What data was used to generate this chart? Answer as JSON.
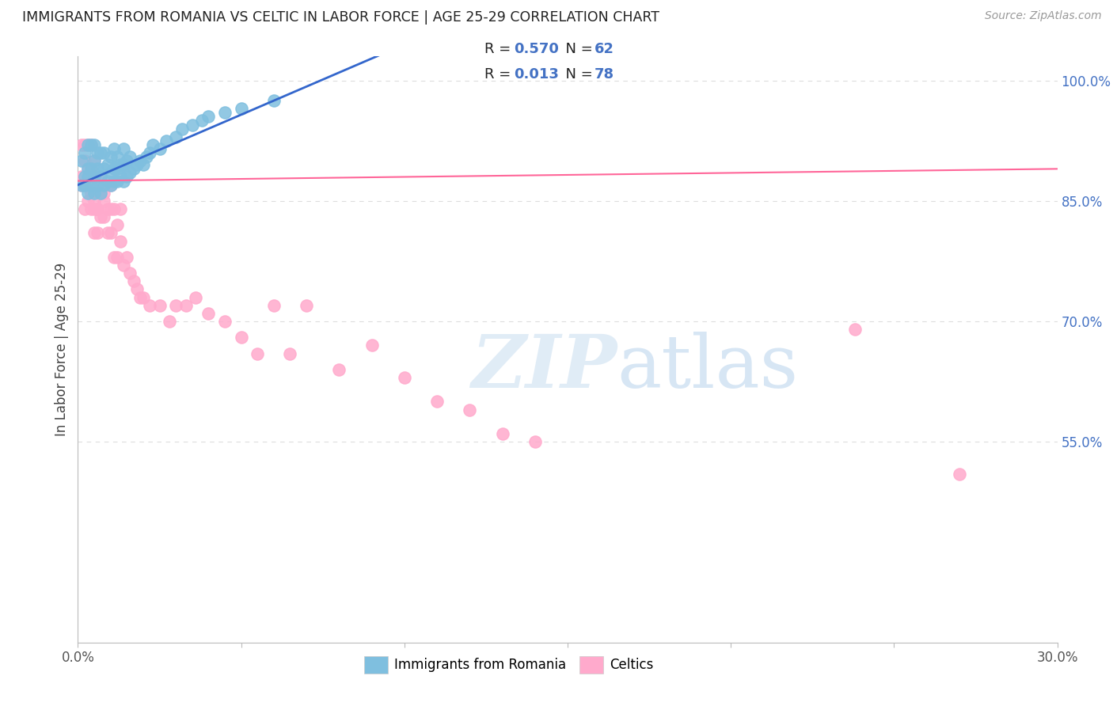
{
  "title": "IMMIGRANTS FROM ROMANIA VS CELTIC IN LABOR FORCE | AGE 25-29 CORRELATION CHART",
  "source": "Source: ZipAtlas.com",
  "ylabel": "In Labor Force | Age 25-29",
  "xlim": [
    0.0,
    0.3
  ],
  "ylim": [
    0.3,
    1.03
  ],
  "xticks": [
    0.0,
    0.05,
    0.1,
    0.15,
    0.2,
    0.25,
    0.3
  ],
  "xticklabels": [
    "0.0%",
    "",
    "",
    "",
    "",
    "",
    "30.0%"
  ],
  "yticks_right": [
    1.0,
    0.85,
    0.7,
    0.55
  ],
  "ytick_labels_right": [
    "100.0%",
    "85.0%",
    "70.0%",
    "55.0%"
  ],
  "romania_color": "#7fbfdf",
  "celtic_color": "#ffaacc",
  "romania_line_color": "#3366cc",
  "celtic_line_color": "#ff6699",
  "legend_label_romania": "Immigrants from Romania",
  "legend_label_celtic": "Celtics",
  "background_color": "#ffffff",
  "grid_color": "#dddddd",
  "title_color": "#222222",
  "right_tick_color": "#4472c4",
  "romania_x": [
    0.001,
    0.001,
    0.002,
    0.002,
    0.002,
    0.003,
    0.003,
    0.003,
    0.003,
    0.004,
    0.004,
    0.004,
    0.005,
    0.005,
    0.005,
    0.005,
    0.006,
    0.006,
    0.006,
    0.007,
    0.007,
    0.007,
    0.008,
    0.008,
    0.008,
    0.009,
    0.009,
    0.01,
    0.01,
    0.01,
    0.011,
    0.011,
    0.011,
    0.012,
    0.012,
    0.012,
    0.013,
    0.013,
    0.014,
    0.014,
    0.014,
    0.015,
    0.015,
    0.016,
    0.016,
    0.017,
    0.018,
    0.019,
    0.02,
    0.021,
    0.022,
    0.023,
    0.025,
    0.027,
    0.03,
    0.032,
    0.035,
    0.038,
    0.04,
    0.045,
    0.05,
    0.06
  ],
  "romania_y": [
    0.87,
    0.9,
    0.88,
    0.91,
    0.87,
    0.86,
    0.89,
    0.92,
    0.88,
    0.87,
    0.89,
    0.92,
    0.86,
    0.88,
    0.9,
    0.92,
    0.87,
    0.89,
    0.91,
    0.86,
    0.88,
    0.91,
    0.87,
    0.89,
    0.91,
    0.875,
    0.895,
    0.87,
    0.885,
    0.905,
    0.875,
    0.89,
    0.915,
    0.875,
    0.89,
    0.905,
    0.88,
    0.895,
    0.875,
    0.895,
    0.915,
    0.88,
    0.9,
    0.885,
    0.905,
    0.89,
    0.895,
    0.9,
    0.895,
    0.905,
    0.91,
    0.92,
    0.915,
    0.925,
    0.93,
    0.94,
    0.945,
    0.95,
    0.955,
    0.96,
    0.965,
    0.975
  ],
  "celtic_x": [
    0.001,
    0.001,
    0.001,
    0.002,
    0.002,
    0.002,
    0.002,
    0.003,
    0.003,
    0.003,
    0.003,
    0.003,
    0.004,
    0.004,
    0.004,
    0.004,
    0.004,
    0.004,
    0.005,
    0.005,
    0.005,
    0.005,
    0.005,
    0.005,
    0.006,
    0.006,
    0.006,
    0.006,
    0.006,
    0.007,
    0.007,
    0.007,
    0.007,
    0.008,
    0.008,
    0.008,
    0.008,
    0.009,
    0.009,
    0.009,
    0.01,
    0.01,
    0.01,
    0.011,
    0.011,
    0.012,
    0.012,
    0.013,
    0.013,
    0.014,
    0.015,
    0.016,
    0.017,
    0.018,
    0.019,
    0.02,
    0.022,
    0.025,
    0.028,
    0.03,
    0.033,
    0.036,
    0.04,
    0.045,
    0.05,
    0.055,
    0.06,
    0.065,
    0.07,
    0.08,
    0.09,
    0.1,
    0.11,
    0.12,
    0.13,
    0.14,
    0.238,
    0.27
  ],
  "celtic_y": [
    0.88,
    0.92,
    0.87,
    0.9,
    0.87,
    0.84,
    0.92,
    0.88,
    0.85,
    0.89,
    0.92,
    0.87,
    0.87,
    0.84,
    0.89,
    0.86,
    0.92,
    0.89,
    0.87,
    0.84,
    0.81,
    0.87,
    0.9,
    0.85,
    0.87,
    0.84,
    0.87,
    0.84,
    0.81,
    0.86,
    0.83,
    0.86,
    0.88,
    0.85,
    0.83,
    0.86,
    0.87,
    0.84,
    0.81,
    0.87,
    0.84,
    0.81,
    0.87,
    0.84,
    0.78,
    0.82,
    0.78,
    0.84,
    0.8,
    0.77,
    0.78,
    0.76,
    0.75,
    0.74,
    0.73,
    0.73,
    0.72,
    0.72,
    0.7,
    0.72,
    0.72,
    0.73,
    0.71,
    0.7,
    0.68,
    0.66,
    0.72,
    0.66,
    0.72,
    0.64,
    0.67,
    0.63,
    0.6,
    0.59,
    0.56,
    0.55,
    0.69,
    0.51
  ]
}
